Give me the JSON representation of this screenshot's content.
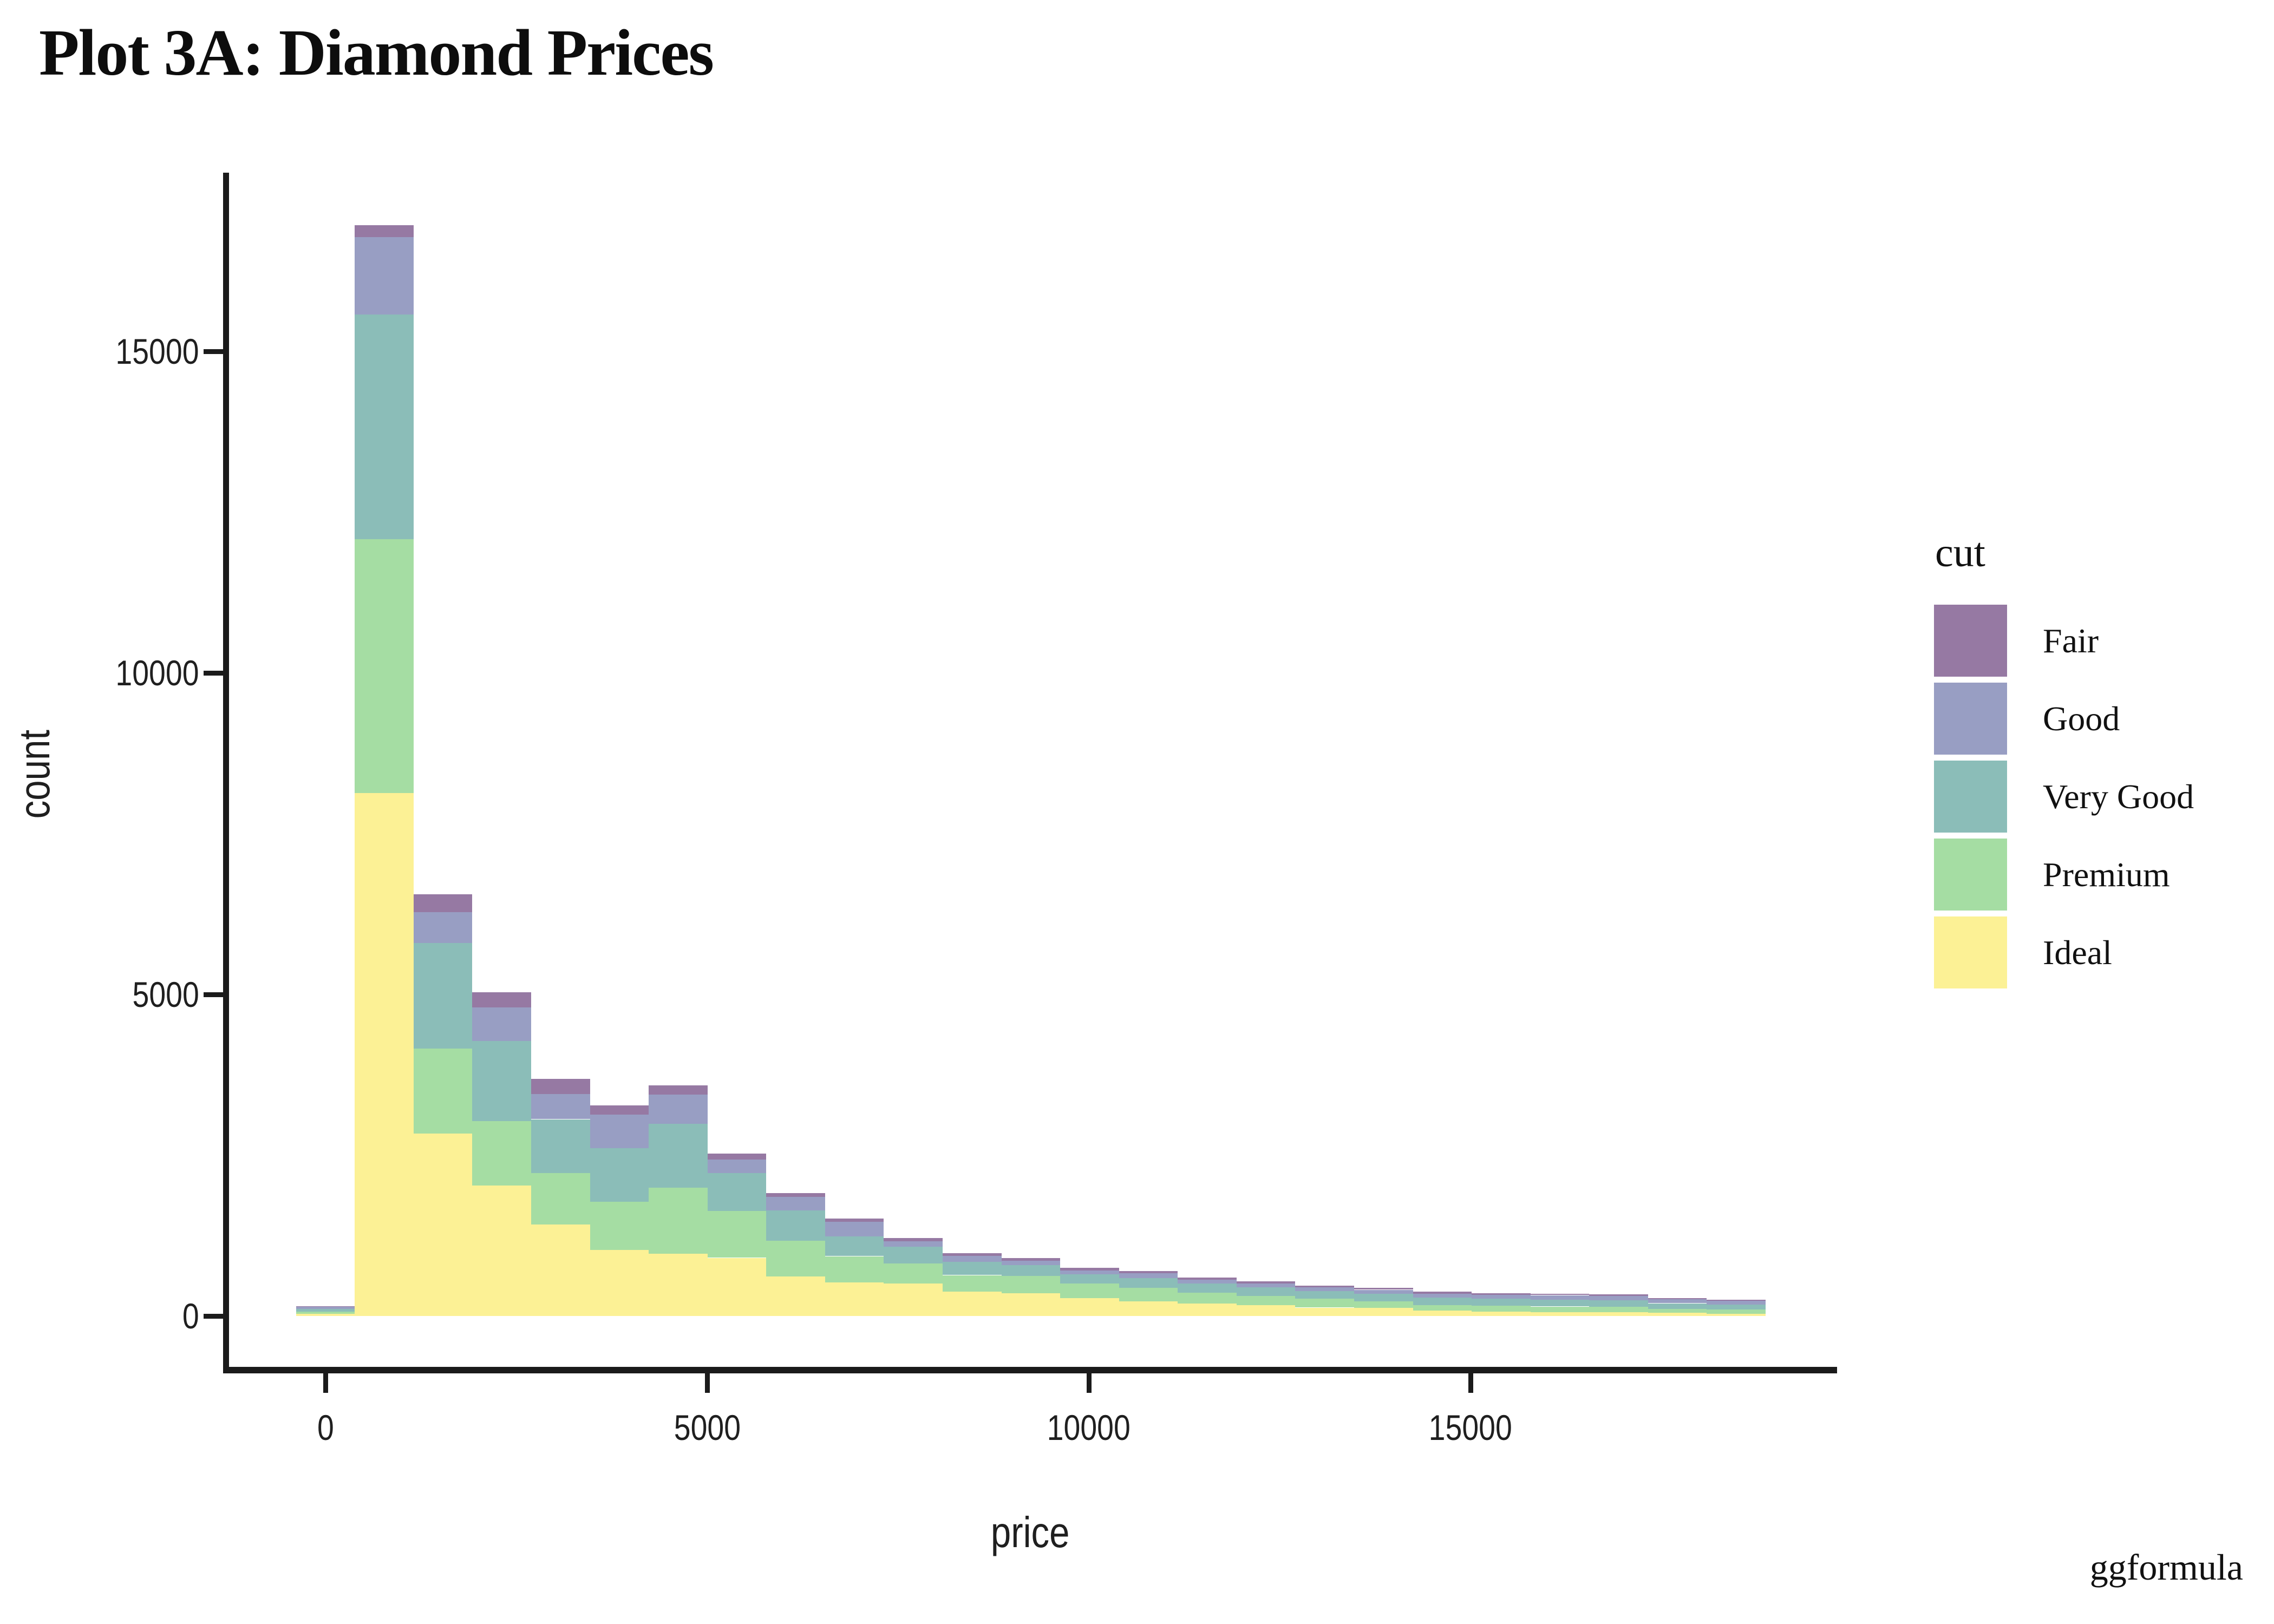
{
  "title": "Plot 3A: Diamond Prices",
  "watermark": "ggformula",
  "axes": {
    "x": {
      "label": "price",
      "tick_labels": [
        "0",
        "5000",
        "10000",
        "15000"
      ],
      "tick_values": [
        0,
        5000,
        10000,
        15000
      ]
    },
    "y": {
      "label": "count",
      "tick_labels": [
        "0",
        "5000",
        "10000",
        "15000"
      ],
      "tick_values": [
        0,
        5000,
        10000,
        15000
      ]
    }
  },
  "legend": {
    "title": "cut",
    "entries": [
      {
        "label": "Fair",
        "color": "#9679A3"
      },
      {
        "label": "Good",
        "color": "#989EC3"
      },
      {
        "label": "Very Good",
        "color": "#8BBDB8"
      },
      {
        "label": "Premium",
        "color": "#A5DDA3"
      },
      {
        "label": "Ideal",
        "color": "#FCF195"
      }
    ]
  },
  "chart_data": {
    "type": "bar",
    "subtype": "stacked-histogram",
    "title": "Plot 3A: Diamond Prices",
    "xlabel": "price",
    "ylabel": "count",
    "legend_title": "cut",
    "legend_position": "right",
    "grid": false,
    "background": "#ffffff",
    "bin_width": 770,
    "bin_centers": [
      0,
      770,
      1540,
      2310,
      3080,
      3850,
      4620,
      5390,
      6160,
      6930,
      7700,
      8470,
      9240,
      10010,
      10780,
      11550,
      12320,
      13090,
      13860,
      14630,
      15400,
      16170,
      16940,
      17710,
      18480
    ],
    "xlim": [
      -1340,
      19800
    ],
    "ylim": [
      0,
      17800
    ],
    "stack_order_bottom_to_top": [
      "Ideal",
      "Premium",
      "Very Good",
      "Good",
      "Fair"
    ],
    "series": [
      {
        "name": "Fair",
        "color": "#9679A3",
        "values": [
          5,
          180,
          280,
          230,
          240,
          145,
          140,
          95,
          60,
          50,
          50,
          40,
          40,
          40,
          40,
          28,
          28,
          28,
          28,
          28,
          25,
          20,
          23,
          20,
          20
        ]
      },
      {
        "name": "Good",
        "color": "#989EC3",
        "values": [
          40,
          1210,
          480,
          520,
          390,
          520,
          455,
          210,
          210,
          230,
          90,
          90,
          70,
          65,
          73,
          62,
          57,
          59,
          65,
          65,
          65,
          70,
          65,
          64,
          59
        ]
      },
      {
        "name": "Very Good",
        "color": "#8BBDB8",
        "values": [
          45,
          3490,
          1640,
          1250,
          840,
          835,
          995,
          590,
          470,
          305,
          260,
          210,
          170,
          140,
          150,
          140,
          140,
          118,
          118,
          113,
          107,
          107,
          104,
          85,
          76
        ]
      },
      {
        "name": "Premium",
        "color": "#A5DDA3",
        "values": [
          30,
          3950,
          1320,
          1000,
          800,
          750,
          1025,
          725,
          555,
          410,
          310,
          260,
          265,
          225,
          215,
          170,
          145,
          140,
          100,
          85,
          90,
          85,
          85,
          65,
          65
        ]
      },
      {
        "name": "Ideal",
        "color": "#FCF195",
        "values": [
          35,
          8130,
          2840,
          2030,
          1420,
          1025,
          970,
          905,
          615,
          520,
          505,
          375,
          355,
          280,
          225,
          195,
          165,
          130,
          125,
          85,
          70,
          62,
          56,
          48,
          34
        ]
      }
    ]
  }
}
